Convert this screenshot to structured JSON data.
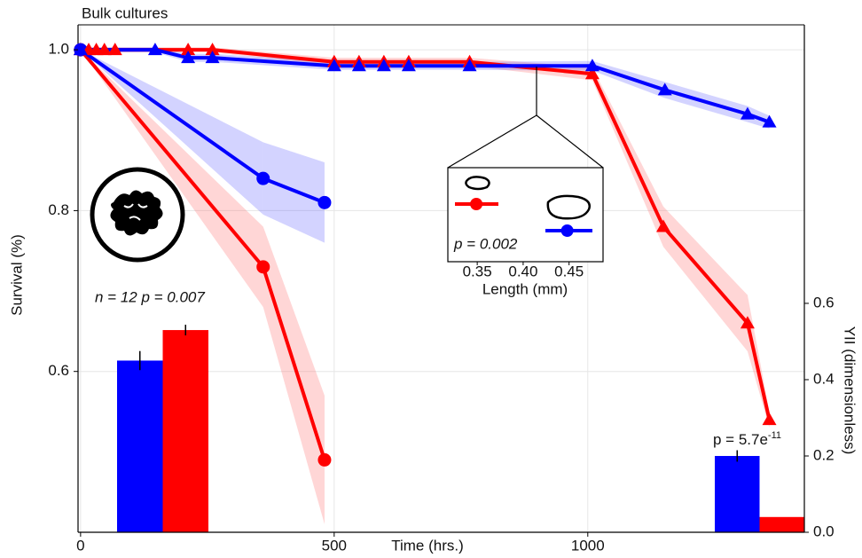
{
  "chart_data": {
    "type": "line",
    "title": "Bulk cultures",
    "x_label": "Time (hrs.)",
    "y_label": "Survival (%)",
    "y2_label": "YII (dimensionless)",
    "xlim": [
      -5,
      1427
    ],
    "xticks": [
      0,
      500,
      1000
    ],
    "ylim": [
      0.4,
      1.031
    ],
    "yticks": [
      0.6,
      0.8,
      {
        "value": 1.0,
        "label": "1.0"
      }
    ],
    "y2lim": [
      0,
      1.33
    ],
    "y2ticks": [
      {
        "value": 0,
        "label": "0.0"
      },
      0.2,
      0.4,
      0.6
    ],
    "grid": true,
    "series": [
      {
        "color": "#ff0000",
        "marker": "circle",
        "x": [
          0,
          360,
          481
        ],
        "values": [
          1.0,
          0.73,
          0.49
        ],
        "errors": [
          0,
          0.05,
          0.08
        ]
      },
      {
        "color": "#0000ff",
        "marker": "circle",
        "x": [
          0,
          360,
          481
        ],
        "values": [
          1.0,
          0.84,
          0.81
        ],
        "errors": [
          0,
          0.045,
          0.05
        ]
      },
      {
        "color": "#ff0000",
        "marker": "triangle",
        "x": [
          0,
          16,
          31,
          47,
          68,
          212,
          260,
          500,
          549,
          598,
          647,
          767,
          1009,
          1149,
          1315,
          1358
        ],
        "values": [
          1.0,
          1.0,
          1.0,
          1.0,
          1.0,
          1.0,
          1.0,
          0.985,
          0.985,
          0.985,
          0.985,
          0.985,
          0.97,
          0.78,
          0.66,
          0.54
        ],
        "errors": [
          0.003,
          0.003,
          0.003,
          0.003,
          0.003,
          0.003,
          0.003,
          0.005,
          0.005,
          0.005,
          0.005,
          0.005,
          0.008,
          0.025,
          0.035,
          0.01
        ]
      },
      {
        "color": "#0000ff",
        "marker": "triangle",
        "x": [
          0,
          147,
          212,
          260,
          500,
          549,
          598,
          647,
          767,
          1009,
          1152,
          1315,
          1358
        ],
        "values": [
          1.0,
          1.0,
          0.99,
          0.99,
          0.98,
          0.98,
          0.98,
          0.98,
          0.98,
          0.98,
          0.95,
          0.92,
          0.91
        ],
        "errors": [
          0.003,
          0.003,
          0.005,
          0.005,
          0.005,
          0.005,
          0.005,
          0.005,
          0.005,
          0.006,
          0.01,
          0.01,
          0.008
        ]
      }
    ],
    "bar_groups": [
      {
        "annotation": "n = 12 p = 0.007",
        "axis": "y2",
        "colors": [
          "#0000ff",
          "#ff0000"
        ],
        "values": [
          0.45,
          0.53
        ],
        "errors": [
          0.025,
          0.014
        ]
      },
      {
        "annotation": {
          "text": "p = 5.7e",
          "superscript": "-11"
        },
        "axis": "y2",
        "colors": [
          "#0000ff",
          "#ff0000"
        ],
        "values": [
          0.2,
          0.04
        ],
        "errors": [
          0.015,
          null
        ]
      }
    ],
    "inset": {
      "x_label": "Length (mm)",
      "annotation": "p = 0.002",
      "xlim": [
        0.318,
        0.487
      ],
      "xticks": [
        0.35,
        {
          "value": 0.4,
          "label": "0.40"
        },
        0.45
      ],
      "series": [
        {
          "color": "#ff0000",
          "value": 0.349
        },
        {
          "color": "#0000ff",
          "value": 0.448
        }
      ]
    }
  }
}
